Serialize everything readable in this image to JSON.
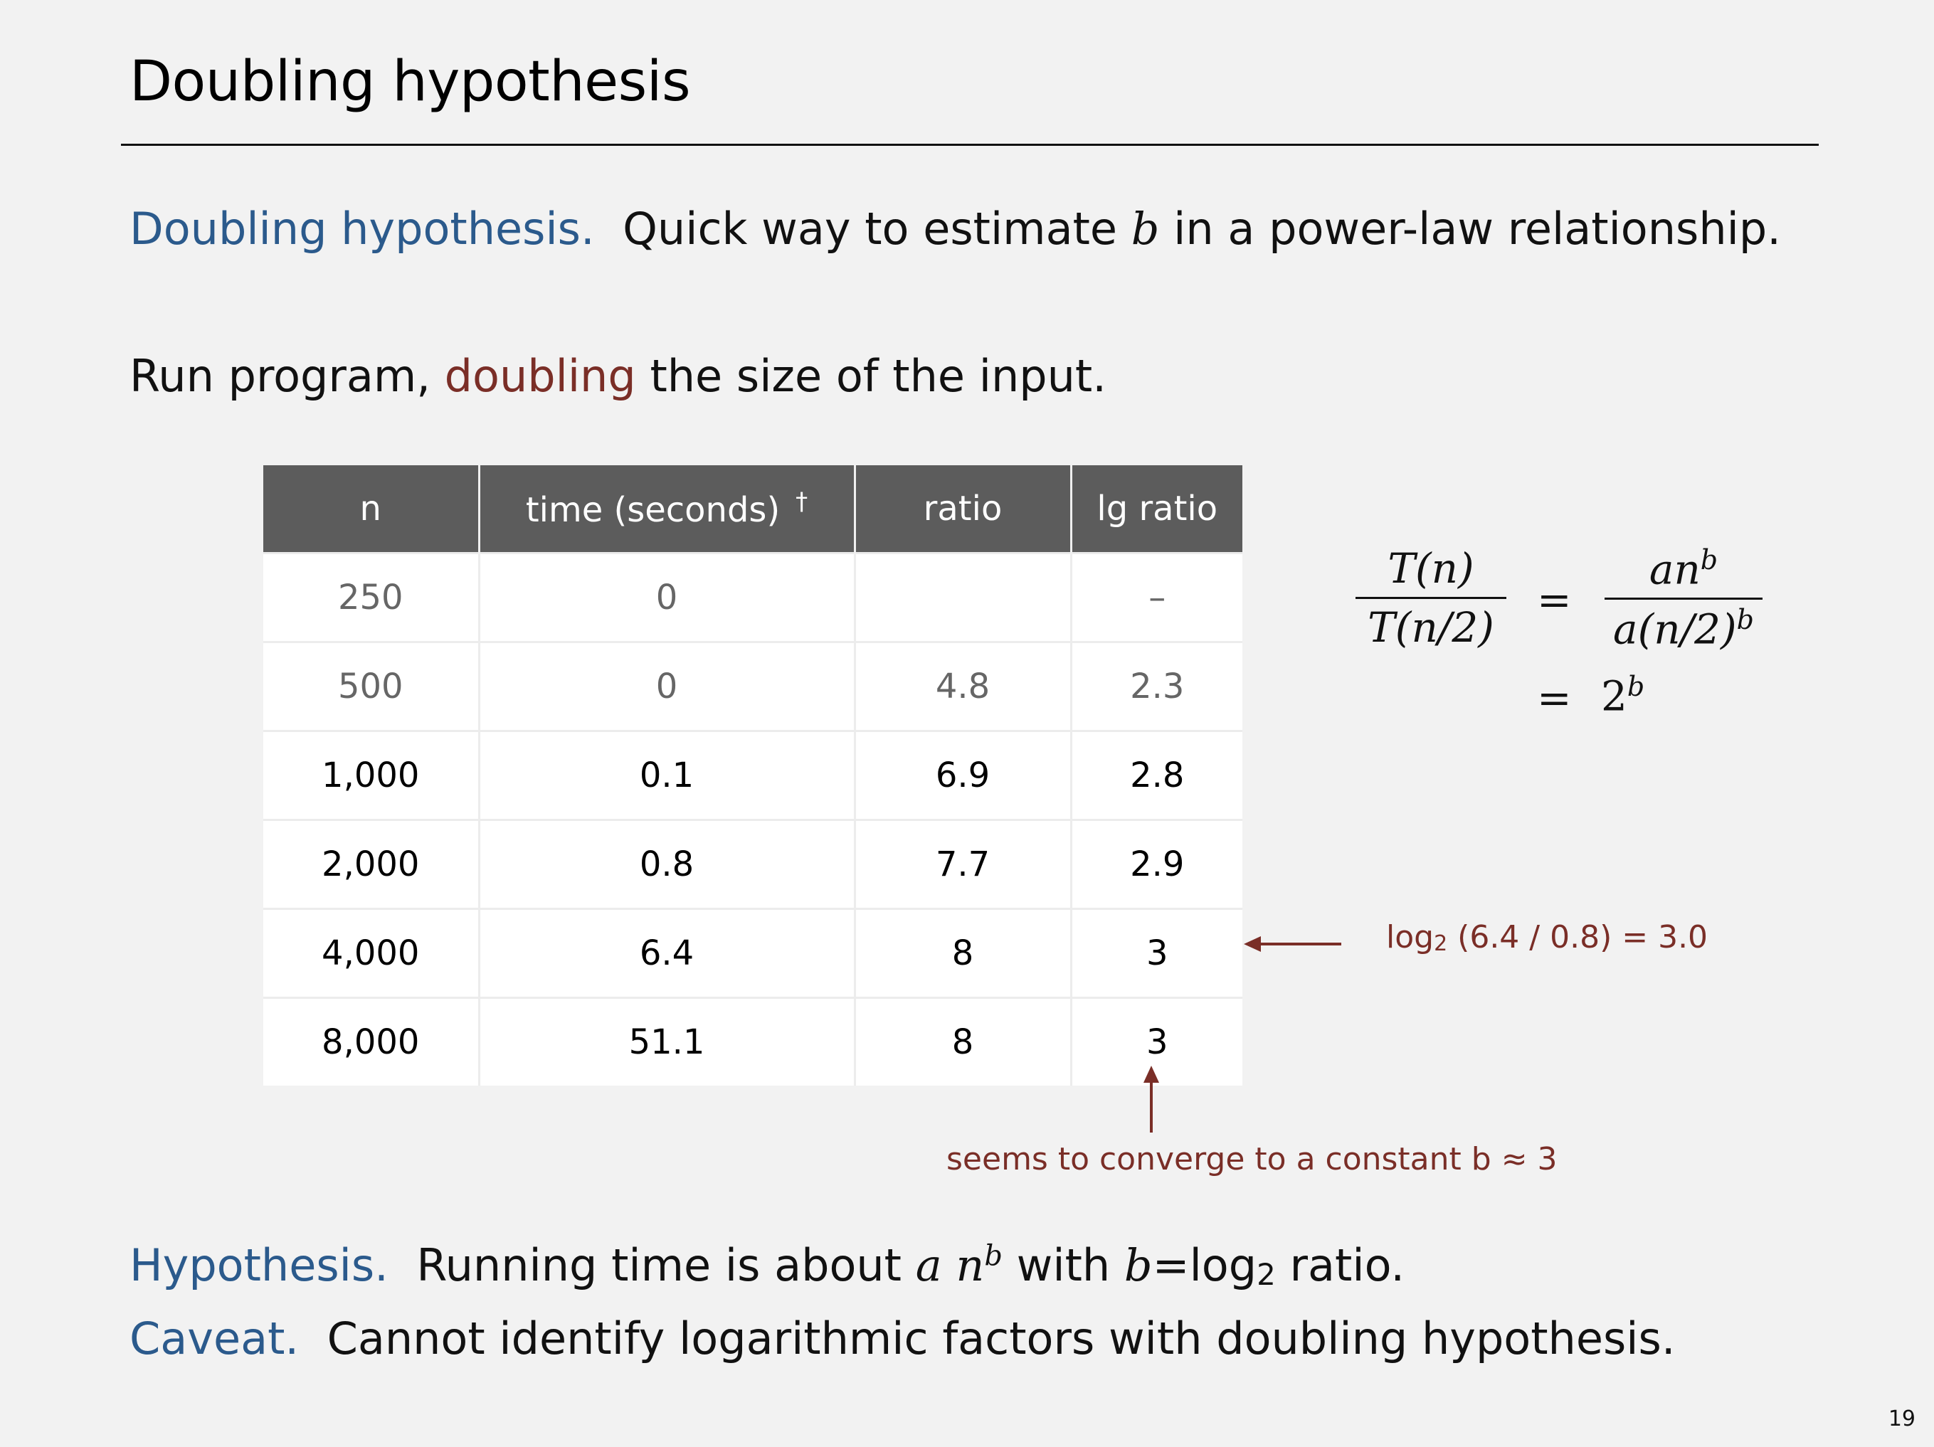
{
  "title": "Doubling hypothesis",
  "intro": {
    "label": "Doubling hypothesis.",
    "text_before": "Quick way to estimate",
    "var": "b",
    "text_after": "in a power-law relationship."
  },
  "run": {
    "before": "Run program,",
    "highlight": "doubling",
    "after": "the size of the input."
  },
  "table": {
    "headers": [
      "n",
      "time (seconds)",
      "ratio",
      "lg ratio"
    ],
    "dagger": "†",
    "rows": [
      [
        "250",
        "0",
        "",
        "–"
      ],
      [
        "500",
        "0",
        "4.8",
        "2.3"
      ],
      [
        "1,000",
        "0.1",
        "6.9",
        "2.8"
      ],
      [
        "2,000",
        "0.8",
        "7.7",
        "2.9"
      ],
      [
        "4,000",
        "6.4",
        "8",
        "3"
      ],
      [
        "8,000",
        "51.1",
        "8",
        "3"
      ]
    ]
  },
  "formula": {
    "lhs_num": "T(n)",
    "lhs_den": "T(n/2)",
    "eq": "=",
    "rhs_num_base": "an",
    "rhs_num_exp": "b",
    "rhs_den_base": "a(n/2)",
    "rhs_den_exp": "b",
    "result_base": "2",
    "result_exp": "b"
  },
  "annotation_log": {
    "prefix": "log",
    "sub": "2",
    "text": " (6.4 / 0.8) = 3.0"
  },
  "annotation_converge": "seems to converge to a constant b ≈ 3",
  "hypothesis": {
    "label": "Hypothesis.",
    "text": "Running time is about",
    "a": "a",
    "n": "n",
    "b": "b",
    "with": "with",
    "eq": "=",
    "log": "log",
    "sub": "2",
    "ratio": "ratio."
  },
  "caveat": {
    "label": "Caveat.",
    "text": "Cannot identify logarithmic factors with doubling hypothesis."
  },
  "page_number": "19"
}
